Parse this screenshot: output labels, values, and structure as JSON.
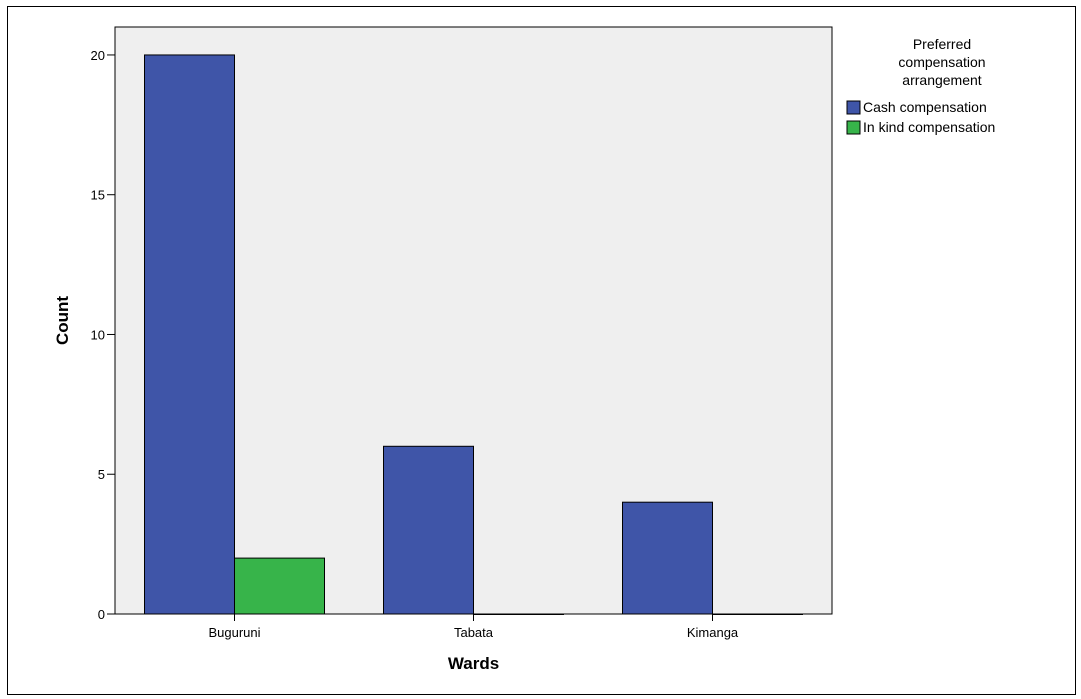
{
  "chart_data": {
    "type": "bar",
    "title": "",
    "xlabel": "Wards",
    "ylabel": "Count",
    "categories": [
      "Buguruni",
      "Tabata",
      "Kimanga"
    ],
    "series": [
      {
        "name": "Cash compensation",
        "values": [
          20,
          6,
          4
        ],
        "color": "#3f55a8"
      },
      {
        "name": "In kind compensation",
        "values": [
          2,
          0,
          0
        ],
        "color": "#37b44a"
      }
    ],
    "ylim": [
      0,
      21
    ],
    "yticks": [
      0,
      5,
      10,
      15,
      20
    ],
    "grid": false,
    "plot_background": "#efefef",
    "legend": {
      "title_lines": [
        "Preferred",
        "compensation",
        "arrangement"
      ],
      "placement": "top-right-outside"
    }
  }
}
